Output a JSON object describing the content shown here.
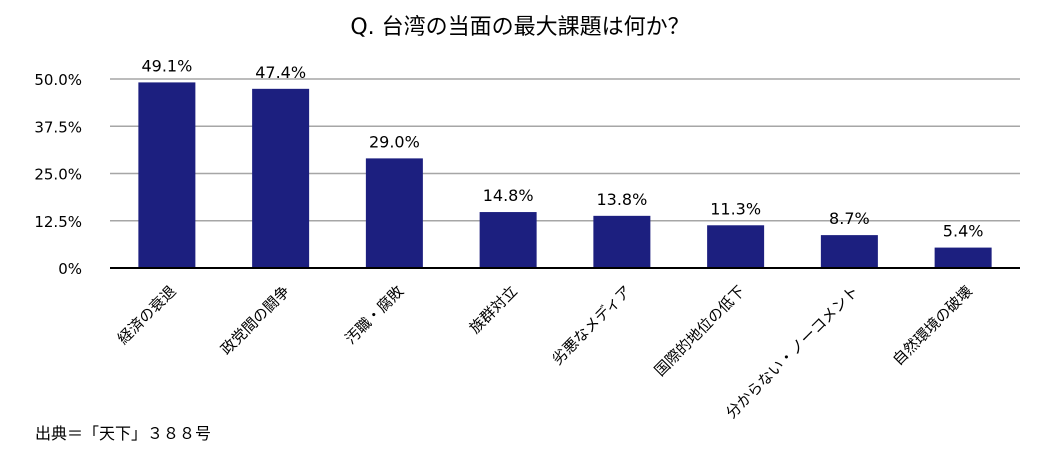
{
  "chart_data": {
    "type": "bar",
    "title": "Q. 台湾の当面の最大課題は何か？",
    "xlabel": "",
    "ylabel": "",
    "categories": [
      "経済の衰退",
      "政党間の闘争",
      "汚職・腐敗",
      "族群対立",
      "劣悪なメディア",
      "国際的地位の低下",
      "分からない・ノーコメント",
      "自然環境の破壊"
    ],
    "values": [
      49.1,
      47.4,
      29.0,
      14.8,
      13.8,
      11.3,
      8.7,
      5.4
    ],
    "value_labels": [
      "49.1%",
      "47.4%",
      "29.0%",
      "14.8%",
      "13.8%",
      "11.3%",
      "8.7%",
      "5.4%"
    ],
    "ylim": [
      0,
      50
    ],
    "yticks": [
      0,
      12.5,
      25,
      37.5,
      50
    ],
    "ytick_labels": [
      "0%",
      "12.5%",
      "25.0%",
      "37.5%",
      "50.0%"
    ],
    "grid": true,
    "bar_color": "#1c1f7f",
    "grid_color": "#a6a6a6"
  },
  "source_note": "出典＝「天下」３８８号"
}
